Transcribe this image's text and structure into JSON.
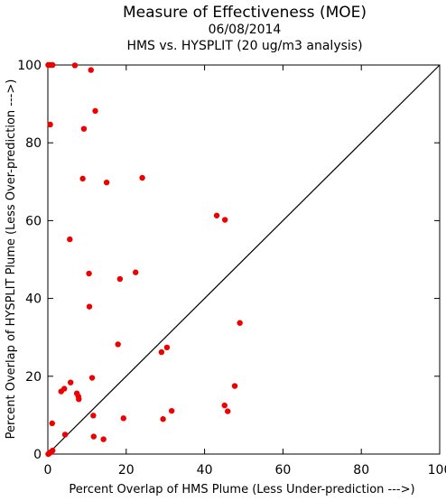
{
  "chart_data": {
    "type": "scatter",
    "title": "Measure of Effectiveness (MOE)",
    "subtitle_date": "06/08/2014",
    "subtitle": "HMS vs. HYSPLIT  (20 ug/m3 analysis)",
    "xlabel": "Percent Overlap of HMS Plume (Less Under-prediction --->)",
    "ylabel": "Percent Overlap of HYSPLIT Plume (Less Over-prediction --->)",
    "xlim": [
      0,
      100
    ],
    "ylim": [
      0,
      100
    ],
    "xticks": [
      0,
      20,
      40,
      60,
      80,
      100
    ],
    "yticks": [
      0,
      20,
      40,
      60,
      80,
      100
    ],
    "grid": false,
    "reference_line": "diagonal y = x",
    "point_color": "#ee0000",
    "line_color": "#000000",
    "points": [
      {
        "x": 0.1,
        "y": 100
      },
      {
        "x": 0.6,
        "y": 100
      },
      {
        "x": 1.2,
        "y": 100
      },
      {
        "x": 6.9,
        "y": 99.9
      },
      {
        "x": 11.0,
        "y": 98.7
      },
      {
        "x": 12.1,
        "y": 88.2
      },
      {
        "x": 0.6,
        "y": 84.7
      },
      {
        "x": 9.2,
        "y": 83.6
      },
      {
        "x": 8.9,
        "y": 70.8
      },
      {
        "x": 15.0,
        "y": 69.8
      },
      {
        "x": 24.1,
        "y": 71.0
      },
      {
        "x": 43.1,
        "y": 61.3
      },
      {
        "x": 45.2,
        "y": 60.2
      },
      {
        "x": 5.6,
        "y": 55.2
      },
      {
        "x": 10.5,
        "y": 46.4
      },
      {
        "x": 22.4,
        "y": 46.7
      },
      {
        "x": 18.4,
        "y": 45.0
      },
      {
        "x": 10.6,
        "y": 37.9
      },
      {
        "x": 49.0,
        "y": 33.7
      },
      {
        "x": 17.9,
        "y": 28.2
      },
      {
        "x": 30.4,
        "y": 27.4
      },
      {
        "x": 29.0,
        "y": 26.2
      },
      {
        "x": 11.3,
        "y": 19.6
      },
      {
        "x": 5.8,
        "y": 18.4
      },
      {
        "x": 47.7,
        "y": 17.5
      },
      {
        "x": 4.2,
        "y": 16.8
      },
      {
        "x": 3.4,
        "y": 16.1
      },
      {
        "x": 7.4,
        "y": 15.6
      },
      {
        "x": 7.8,
        "y": 14.8
      },
      {
        "x": 7.9,
        "y": 14.1
      },
      {
        "x": 45.1,
        "y": 12.5
      },
      {
        "x": 45.9,
        "y": 11.0
      },
      {
        "x": 31.6,
        "y": 11.1
      },
      {
        "x": 11.6,
        "y": 9.9
      },
      {
        "x": 19.3,
        "y": 9.2
      },
      {
        "x": 29.4,
        "y": 9.0
      },
      {
        "x": 1.1,
        "y": 7.9
      },
      {
        "x": 4.4,
        "y": 5.0
      },
      {
        "x": 11.7,
        "y": 4.5
      },
      {
        "x": 14.2,
        "y": 3.8
      },
      {
        "x": 0.1,
        "y": 0.0
      },
      {
        "x": 0.5,
        "y": 0.3
      },
      {
        "x": 0.9,
        "y": 0.6
      },
      {
        "x": 1.2,
        "y": 0.9
      }
    ]
  }
}
